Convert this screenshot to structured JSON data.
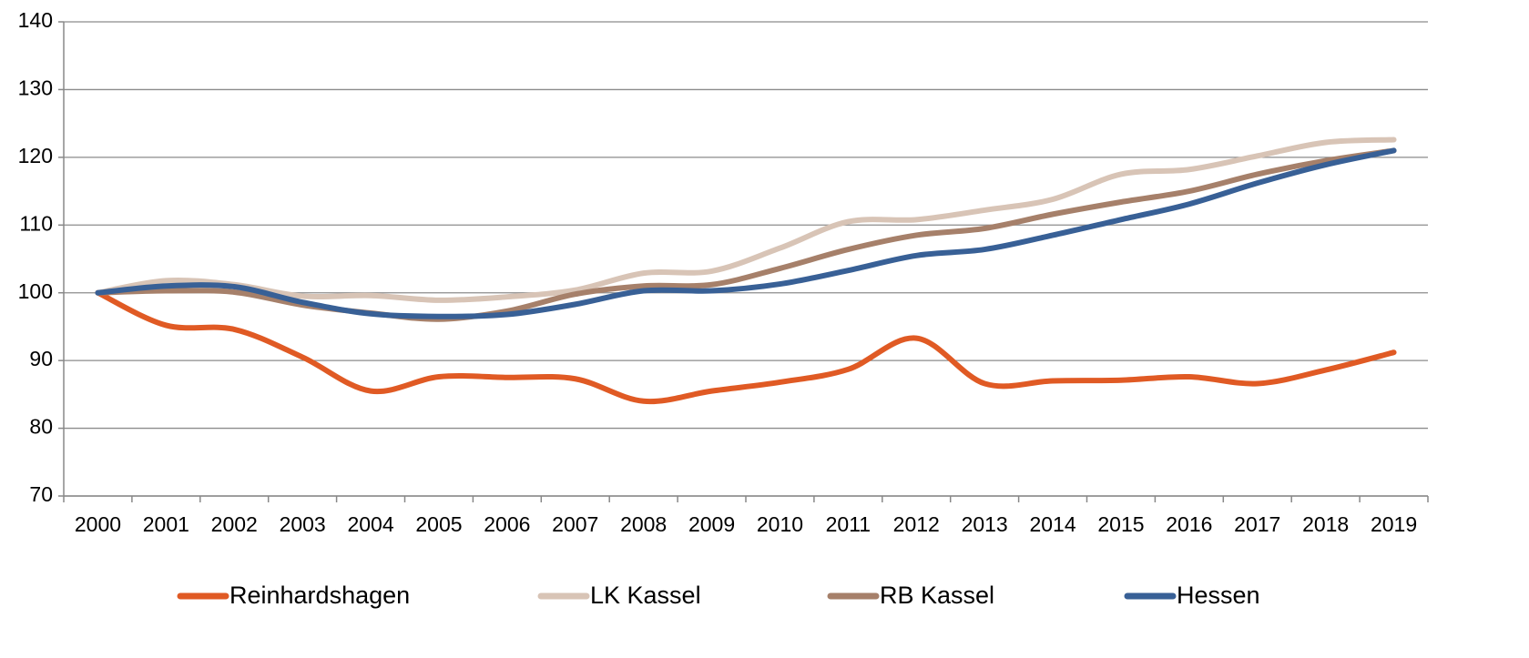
{
  "chart_data": {
    "type": "line",
    "categories": [
      "2000",
      "2001",
      "2002",
      "2003",
      "2004",
      "2005",
      "2006",
      "2007",
      "2008",
      "2009",
      "2010",
      "2011",
      "2012",
      "2013",
      "2014",
      "2015",
      "2016",
      "2017",
      "2018",
      "2019"
    ],
    "series": [
      {
        "name": "Reinhardshagen",
        "color": "#e05a24",
        "values": [
          100,
          95.2,
          94.6,
          90.5,
          85.5,
          87.6,
          87.5,
          87.3,
          84,
          85.5,
          86.8,
          88.7,
          93.3,
          86.6,
          87,
          87.1,
          87.6,
          86.6,
          88.6,
          91.2
        ]
      },
      {
        "name": "LK Kassel",
        "color": "#d8c4b6",
        "values": [
          100,
          101.8,
          101.2,
          99.5,
          99.6,
          98.9,
          99.4,
          100.4,
          102.9,
          103.2,
          106.6,
          110.5,
          110.8,
          112.2,
          113.8,
          117.5,
          118.2,
          120.2,
          122.2,
          122.6
        ]
      },
      {
        "name": "RB Kassel",
        "color": "#a6806a",
        "values": [
          100,
          100.3,
          100.1,
          98.2,
          97,
          96.1,
          97.3,
          99.8,
          101,
          101.2,
          103.6,
          106.4,
          108.5,
          109.5,
          111.6,
          113.4,
          115,
          117.5,
          119.5,
          121
        ]
      },
      {
        "name": "Hessen",
        "color": "#386096",
        "values": [
          100,
          101,
          100.9,
          98.6,
          96.9,
          96.5,
          96.8,
          98.3,
          100.3,
          100.3,
          101.3,
          103.3,
          105.5,
          106.4,
          108.5,
          110.8,
          113.1,
          116.2,
          118.9,
          121
        ]
      }
    ],
    "ylim": [
      70,
      140
    ],
    "yticks": [
      70,
      80,
      90,
      100,
      110,
      120,
      130,
      140
    ],
    "grid": true,
    "legend": "bottom"
  }
}
